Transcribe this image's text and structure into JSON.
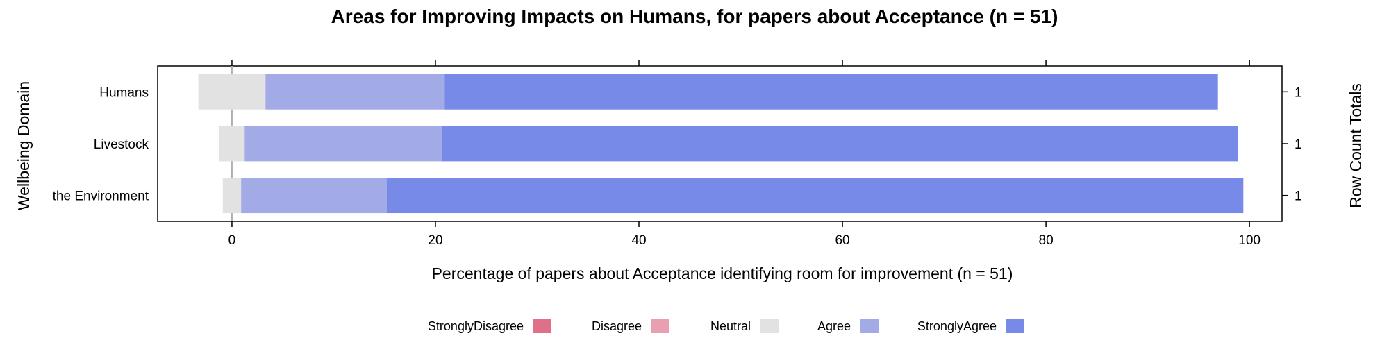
{
  "chart_data": {
    "type": "bar",
    "orientation": "horizontal",
    "stacked": true,
    "diverging": true,
    "title": "Areas for Improving Impacts on Humans, for papers about Acceptance (n = 51)",
    "xlabel": "Percentage of papers about Acceptance identifying room for improvement (n = 51)",
    "ylabel": "Wellbeing Domain",
    "ylabel_right": "Row Count Totals",
    "xlim": [
      -7.3,
      103.2
    ],
    "xticks": [
      0,
      20,
      40,
      60,
      80,
      100
    ],
    "categories": [
      "Humans",
      "Livestock",
      "the Environment"
    ],
    "row_totals": [
      "1",
      "1",
      "1"
    ],
    "series": [
      {
        "name": "StronglyDisagree",
        "color": "#e0708a",
        "values": [
          0,
          0,
          0
        ]
      },
      {
        "name": "Disagree",
        "color": "#e8a0b0",
        "values": [
          0,
          0,
          0
        ]
      },
      {
        "name": "Neutral",
        "color": "#e2e2e2",
        "values": [
          6.6,
          2.5,
          1.8
        ]
      },
      {
        "name": "Agree",
        "color": "#a2abe6",
        "values": [
          17.6,
          19.4,
          14.3
        ]
      },
      {
        "name": "StronglyAgree",
        "color": "#788ae8",
        "values": [
          76.0,
          78.2,
          84.2
        ]
      }
    ],
    "legend_position": "bottom",
    "zero_line": true
  }
}
